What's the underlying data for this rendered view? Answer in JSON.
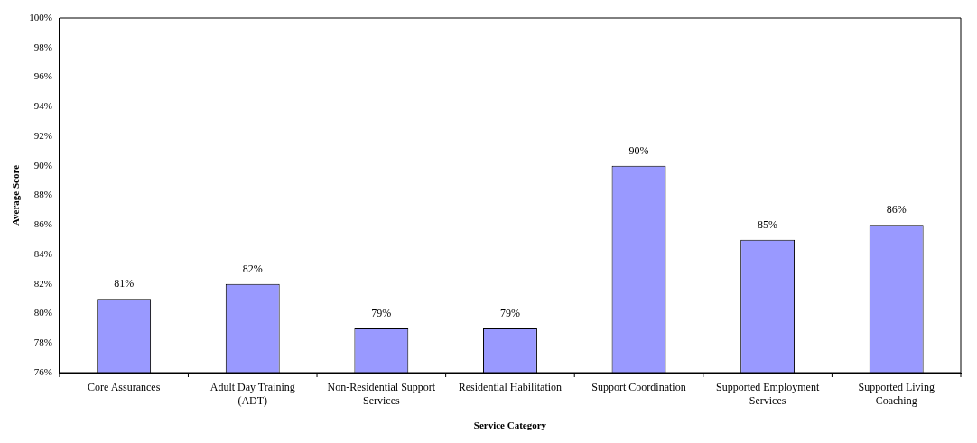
{
  "chart_data": {
    "type": "bar",
    "xlabel": "Service Category",
    "ylabel": "Average Score",
    "categories": [
      "Core Assurances",
      "Adult Day Training (ADT)",
      "Non-Residential Support Services",
      "Residential Habilitation",
      "Support Coordination",
      "Supported Employment Services",
      "Supported Living Coaching"
    ],
    "values": [
      81,
      82,
      79,
      79,
      90,
      85,
      86
    ],
    "value_labels": [
      "81%",
      "82%",
      "79%",
      "79%",
      "90%",
      "85%",
      "86%"
    ],
    "color": "#9999ff",
    "ylim": [
      76,
      100
    ],
    "yticks": [
      {
        "value": 76,
        "label": "76%"
      },
      {
        "value": 78,
        "label": "78%"
      },
      {
        "value": 80,
        "label": "80%"
      },
      {
        "value": 82,
        "label": "82%"
      },
      {
        "value": 84,
        "label": "84%"
      },
      {
        "value": 86,
        "label": "86%"
      },
      {
        "value": 88,
        "label": "88%"
      },
      {
        "value": 90,
        "label": "90%"
      },
      {
        "value": 92,
        "label": "92%"
      },
      {
        "value": 94,
        "label": "94%"
      },
      {
        "value": 96,
        "label": "96%"
      },
      {
        "value": 98,
        "label": "98%"
      },
      {
        "value": 100,
        "label": "100%"
      }
    ],
    "grid": false,
    "legend": false
  }
}
